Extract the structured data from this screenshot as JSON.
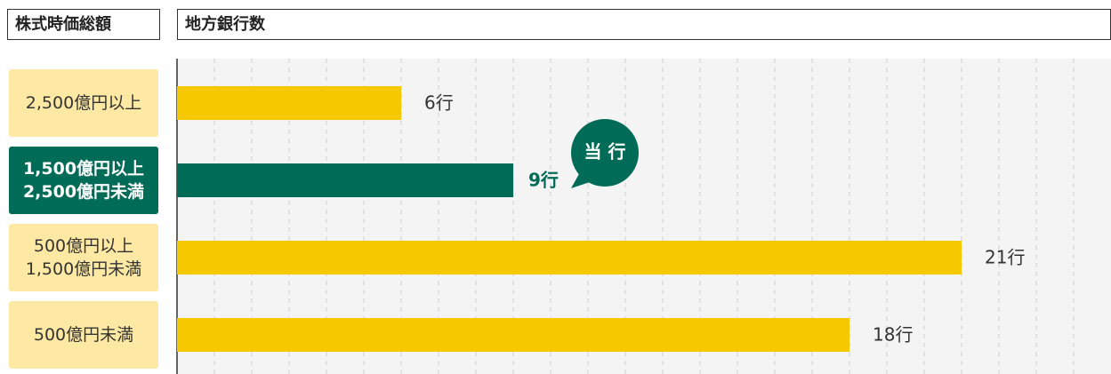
{
  "chart_data": {
    "type": "bar",
    "orientation": "horizontal",
    "headers": [
      "株式時価総額",
      "地方銀行数"
    ],
    "categories": [
      "2,500億円以上",
      "1,500億円以上\n2,500億円未満",
      "500億円以上\n1,500億円未満",
      "500億円未満"
    ],
    "values": [
      6,
      9,
      21,
      18
    ],
    "value_labels": [
      "6行",
      "9行",
      "21行",
      "18行"
    ],
    "color": "#f5c800",
    "highlight_color": "#006b56",
    "highlight_index": 1,
    "annotation": "当 行",
    "xlim": [
      0,
      25
    ],
    "xticks": [
      1,
      2,
      3,
      4,
      5,
      6,
      7,
      8,
      9,
      10,
      11,
      12,
      13,
      14,
      15,
      16,
      17,
      18,
      19,
      20,
      21,
      22,
      23,
      24
    ],
    "grid": true
  }
}
